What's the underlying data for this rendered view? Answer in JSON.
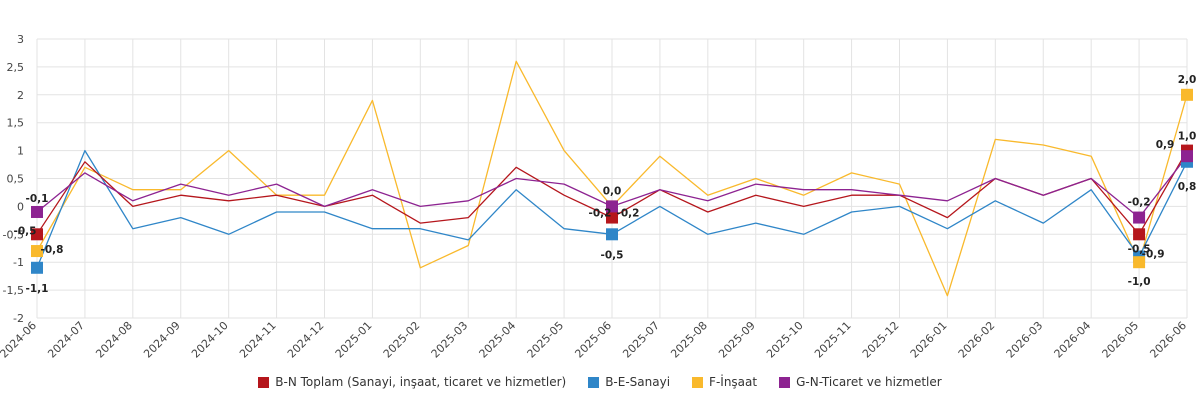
{
  "chart_data": {
    "type": "line",
    "title": "",
    "xlabel": "",
    "ylabel": "",
    "ylim": [
      -2,
      3
    ],
    "yticks": [
      -2,
      -1.5,
      -1,
      -0.5,
      0,
      0.5,
      1,
      1.5,
      2,
      2.5,
      3
    ],
    "ytick_labels": [
      "-2",
      "-1,5",
      "-1",
      "-0,5",
      "0",
      "0,5",
      "1",
      "1,5",
      "2",
      "2,5",
      "3"
    ],
    "grid": true,
    "legend_position": "bottom",
    "categories": [
      "2024-06",
      "2024-07",
      "2024-08",
      "2024-09",
      "2024-10",
      "2024-11",
      "2024-12",
      "2025-01",
      "2025-02",
      "2025-03",
      "2025-04",
      "2025-05",
      "2025-06",
      "2025-07",
      "2025-08",
      "2025-09",
      "2025-10",
      "2025-11",
      "2025-12",
      "2026-01",
      "2026-02",
      "2026-03",
      "2026-04",
      "2026-05",
      "2026-06"
    ],
    "series": [
      {
        "name": "B-N Toplam (Sanayi, inşaat, ticaret ve hizmetler)",
        "color": "#b5161c",
        "values": [
          -0.5,
          0.8,
          0.0,
          0.2,
          0.1,
          0.2,
          0.0,
          0.2,
          -0.3,
          -0.2,
          0.7,
          0.2,
          -0.2,
          0.3,
          -0.1,
          0.2,
          0.0,
          0.2,
          0.2,
          -0.2,
          0.5,
          0.2,
          0.5,
          -0.5,
          1.0
        ]
      },
      {
        "name": "B-E-Sanayi",
        "color": "#2f86c8",
        "values": [
          -1.1,
          1.0,
          -0.4,
          -0.2,
          -0.5,
          -0.1,
          -0.1,
          -0.4,
          -0.4,
          -0.6,
          0.3,
          -0.4,
          -0.5,
          0.0,
          -0.5,
          -0.3,
          -0.5,
          -0.1,
          0.0,
          -0.4,
          0.1,
          -0.3,
          0.3,
          -0.9,
          0.8
        ]
      },
      {
        "name": "F-İnşaat",
        "color": "#f9b92c",
        "values": [
          -0.8,
          0.7,
          0.3,
          0.3,
          1.0,
          0.2,
          0.2,
          1.9,
          -1.1,
          -0.7,
          2.6,
          1.0,
          0.0,
          0.9,
          0.2,
          0.5,
          0.2,
          0.6,
          0.4,
          -1.6,
          1.2,
          1.1,
          0.9,
          -1.0,
          2.0
        ]
      },
      {
        "name": "G-N-Ticaret ve hizmetler",
        "color": "#8d2391",
        "values": [
          -0.1,
          0.6,
          0.1,
          0.4,
          0.2,
          0.4,
          0.0,
          0.3,
          0.0,
          0.1,
          0.5,
          0.4,
          0.0,
          0.3,
          0.1,
          0.4,
          0.3,
          0.3,
          0.2,
          0.1,
          0.5,
          0.2,
          0.5,
          -0.2,
          0.9
        ]
      }
    ],
    "data_labels": [
      {
        "text": "-0,1",
        "series": 3,
        "index": 0
      },
      {
        "text": "-0,8",
        "series": 2,
        "index": 0
      },
      {
        "text": "-0,5",
        "series": 0,
        "index": 0
      },
      {
        "text": "-1,1",
        "series": 1,
        "index": 0
      },
      {
        "text": "0,0",
        "series": 3,
        "index": 12
      },
      {
        "text": "-0,2",
        "series": 0,
        "index": 12
      },
      {
        "text": "-0,2",
        "series": 0,
        "index": 12
      },
      {
        "text": "-0,5",
        "series": 1,
        "index": 12
      },
      {
        "text": "-0,2",
        "series": 3,
        "index": 23
      },
      {
        "text": "-0,5",
        "series": 0,
        "index": 23
      },
      {
        "text": "-0,9",
        "series": 1,
        "index": 23
      },
      {
        "text": "-1,0",
        "series": 2,
        "index": 23
      },
      {
        "text": "2,0",
        "series": 2,
        "index": 24
      },
      {
        "text": "1,0",
        "series": 0,
        "index": 24
      },
      {
        "text": "0,9",
        "series": 3,
        "index": 24
      },
      {
        "text": "0,8",
        "series": 1,
        "index": 24
      }
    ]
  }
}
